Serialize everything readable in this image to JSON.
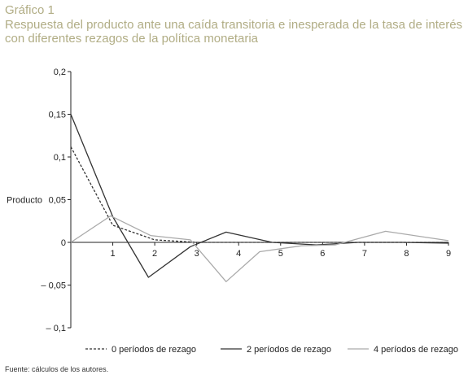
{
  "header": {
    "label": "Gráfico 1",
    "title_line1": "Respuesta del producto ante una caída transitoria e inesperada de la tasa de interés",
    "title_line2": "con diferentes rezagos de la política monetaria"
  },
  "source": "Fuente: cálculos de los autores.",
  "chart_data": {
    "type": "line",
    "title": "Respuesta del producto ante una caída transitoria e inesperada de la tasa de interés con diferentes rezagos de la política monetaria",
    "ylabel": "Producto",
    "xlabel": "",
    "xlim": [
      0,
      9
    ],
    "ylim": [
      -0.1,
      0.2
    ],
    "x_ticks": [
      1,
      2,
      3,
      4,
      5,
      6,
      7,
      8,
      9
    ],
    "x_tick_labels": [
      "1",
      "2",
      "3",
      "4",
      "5",
      "6",
      "7",
      "8",
      "9"
    ],
    "y_ticks": [
      0.2,
      0.15,
      0.1,
      0.05,
      0,
      -0.05,
      -0.1
    ],
    "y_tick_labels": [
      "0,2",
      "0,15",
      "0,1",
      "0,05",
      "0",
      "– 0,05",
      "– 0,1"
    ],
    "grid": false,
    "legend_position": "bottom",
    "series": [
      {
        "name": "0 períodos de rezago",
        "color": "#333333",
        "dash": "dashed",
        "x": [
          0,
          1,
          2,
          3,
          4,
          5,
          6,
          7,
          8,
          9
        ],
        "values": [
          0.112,
          0.02,
          0.003,
          0.0,
          0.0,
          0.0,
          0.0,
          0.0,
          0.0,
          0.0
        ]
      },
      {
        "name": "2 períodos de rezago",
        "color": "#333333",
        "dash": "solid",
        "x": [
          0,
          1,
          1.85,
          2.85,
          3.7,
          4.8,
          5.85,
          6.85,
          7.9,
          9
        ],
        "values": [
          0.15,
          0.03,
          -0.041,
          -0.005,
          0.012,
          0.0,
          -0.003,
          0.0,
          0.0,
          -0.001
        ]
      },
      {
        "name": "4 períodos de rezago",
        "color": "#aaaaaa",
        "dash": "solid",
        "x": [
          0,
          0.95,
          1.9,
          2.85,
          3.7,
          4.5,
          5.5,
          6.3,
          7.5,
          9
        ],
        "values": [
          0.0,
          0.031,
          0.008,
          0.003,
          -0.046,
          -0.011,
          -0.004,
          -0.003,
          0.013,
          0.002
        ]
      }
    ]
  }
}
